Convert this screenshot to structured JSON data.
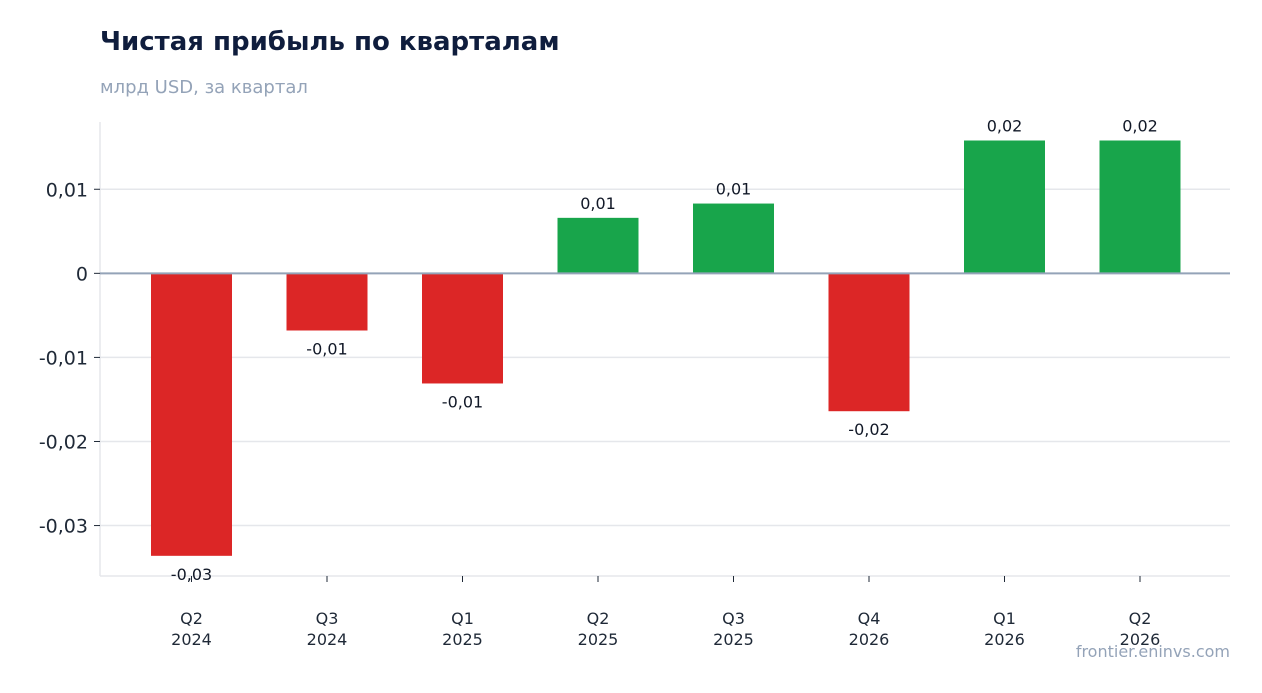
{
  "title": "Чистая прибыль по кварталам",
  "subtitle": "млрд USD, за квартал",
  "watermark": "frontier.eninvs.com",
  "colors": {
    "positive": "#18a54b",
    "negative": "#dc2626",
    "grid": "#e5e7eb",
    "zero": "#94a3b8"
  },
  "chart_data": {
    "type": "bar",
    "title": "Чистая прибыль по кварталам",
    "subtitle": "млрд USD, за квартал",
    "xlabel": "",
    "ylabel": "",
    "categories": [
      [
        "Q2",
        "2024"
      ],
      [
        "Q3",
        "2024"
      ],
      [
        "Q1",
        "2025"
      ],
      [
        "Q2",
        "2025"
      ],
      [
        "Q3",
        "2025"
      ],
      [
        "Q4",
        "2026"
      ],
      [
        "Q1",
        "2026"
      ],
      [
        "Q2",
        "2026"
      ]
    ],
    "values": [
      -0.0336,
      -0.0068,
      -0.0131,
      0.0066,
      0.0083,
      -0.0164,
      0.0158,
      0.0158
    ],
    "data_labels": [
      "-0,03",
      "-0,01",
      "-0,01",
      "0,01",
      "0,01",
      "-0,02",
      "0,02",
      "0,02"
    ],
    "yticks": [
      0.01,
      0,
      -0.01,
      -0.02,
      -0.03
    ],
    "ytick_labels": [
      "0,01",
      "0",
      "-0,01",
      "-0,02",
      "-0,03"
    ],
    "ylim": [
      -0.036,
      0.018
    ],
    "grid": true,
    "legend": "none"
  }
}
